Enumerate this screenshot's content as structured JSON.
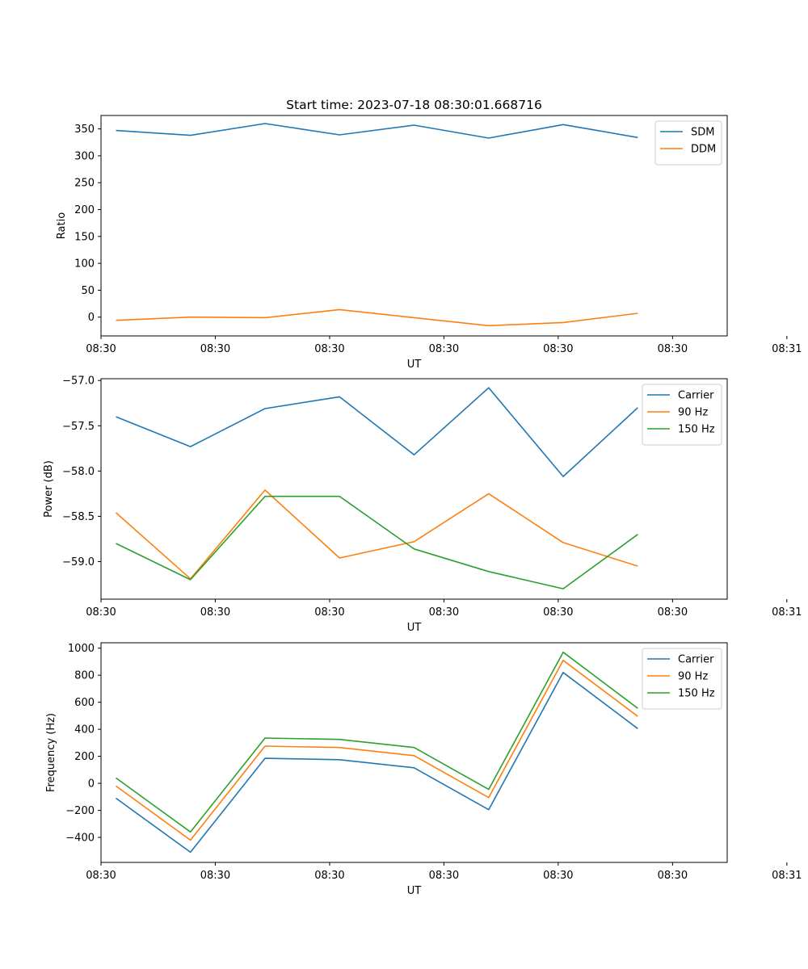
{
  "chart_data": [
    {
      "type": "line",
      "title": "Start time: 2023-07-18 08:30:01.668716",
      "xlabel": "UT",
      "ylabel": "Ratio",
      "x": [
        1,
        2,
        3,
        4,
        5,
        6,
        7,
        8
      ],
      "xlim": [
        0.8,
        9.2
      ],
      "ylim": [
        -35,
        375
      ],
      "yticks": [
        0,
        50,
        100,
        150,
        200,
        250,
        300,
        350
      ],
      "ytick_labels": [
        "0",
        "50",
        "100",
        "150",
        "200",
        "250",
        "300",
        "350"
      ],
      "xticks": [
        0.8,
        2.333,
        3.867,
        5.4,
        6.933,
        8.467,
        10
      ],
      "xtick_labels": [
        "08:30",
        "08:30",
        "08:30",
        "08:30",
        "08:30",
        "08:30",
        "08:31"
      ],
      "legend": "top-right",
      "series": [
        {
          "name": "SDM",
          "color": "#1f77b4",
          "values": [
            347,
            338,
            360,
            339,
            357,
            333,
            358,
            334
          ]
        },
        {
          "name": "DDM",
          "color": "#ff7f0e",
          "values": [
            -6,
            0,
            -1,
            14,
            -1,
            -16,
            -10,
            7
          ]
        }
      ]
    },
    {
      "type": "line",
      "title": "",
      "xlabel": "UT",
      "ylabel": "Power (dB)",
      "x": [
        1,
        2,
        3,
        4,
        5,
        6,
        7,
        8
      ],
      "xlim": [
        0.8,
        9.2
      ],
      "ylim": [
        -59.415,
        -56.98
      ],
      "yticks": [
        -59.0,
        -58.5,
        -58.0,
        -57.5,
        -57.0
      ],
      "ytick_labels": [
        "−59.0",
        "−58.5",
        "−58.0",
        "−57.5",
        "−57.0"
      ],
      "xticks": [
        0.8,
        2.333,
        3.867,
        5.4,
        6.933,
        8.467,
        10
      ],
      "xtick_labels": [
        "08:30",
        "08:30",
        "08:30",
        "08:30",
        "08:30",
        "08:30",
        "08:31"
      ],
      "legend": "top-right",
      "series": [
        {
          "name": "Carrier",
          "color": "#1f77b4",
          "values": [
            -57.4,
            -57.73,
            -57.31,
            -57.18,
            -57.82,
            -57.08,
            -58.06,
            -57.3
          ]
        },
        {
          "name": "90 Hz",
          "color": "#ff7f0e",
          "values": [
            -58.46,
            -59.19,
            -58.21,
            -58.96,
            -58.78,
            -58.25,
            -58.79,
            -59.05
          ]
        },
        {
          "name": "150 Hz",
          "color": "#2ca02c",
          "values": [
            -58.8,
            -59.2,
            -58.28,
            -58.28,
            -58.86,
            -59.11,
            -59.3,
            -58.7
          ]
        }
      ]
    },
    {
      "type": "line",
      "title": "",
      "xlabel": "UT",
      "ylabel": "Frequency (Hz)",
      "x": [
        1,
        2,
        3,
        4,
        5,
        6,
        7,
        8
      ],
      "xlim": [
        0.8,
        9.2
      ],
      "ylim": [
        -585,
        1040
      ],
      "yticks": [
        -400,
        -200,
        0,
        200,
        400,
        600,
        800,
        1000
      ],
      "ytick_labels": [
        "−400",
        "−200",
        "0",
        "200",
        "400",
        "600",
        "800",
        "1000"
      ],
      "xticks": [
        0.8,
        2.333,
        3.867,
        5.4,
        6.933,
        8.467,
        10
      ],
      "xtick_labels": [
        "08:30",
        "08:30",
        "08:30",
        "08:30",
        "08:30",
        "08:30",
        "08:31"
      ],
      "legend": "top-right",
      "series": [
        {
          "name": "Carrier",
          "color": "#1f77b4",
          "values": [
            -110,
            -510,
            185,
            175,
            115,
            -195,
            820,
            405
          ]
        },
        {
          "name": "90 Hz",
          "color": "#ff7f0e",
          "values": [
            -20,
            -420,
            275,
            265,
            205,
            -105,
            910,
            495
          ]
        },
        {
          "name": "150 Hz",
          "color": "#2ca02c",
          "values": [
            40,
            -360,
            335,
            325,
            265,
            -45,
            970,
            555
          ]
        }
      ]
    }
  ]
}
